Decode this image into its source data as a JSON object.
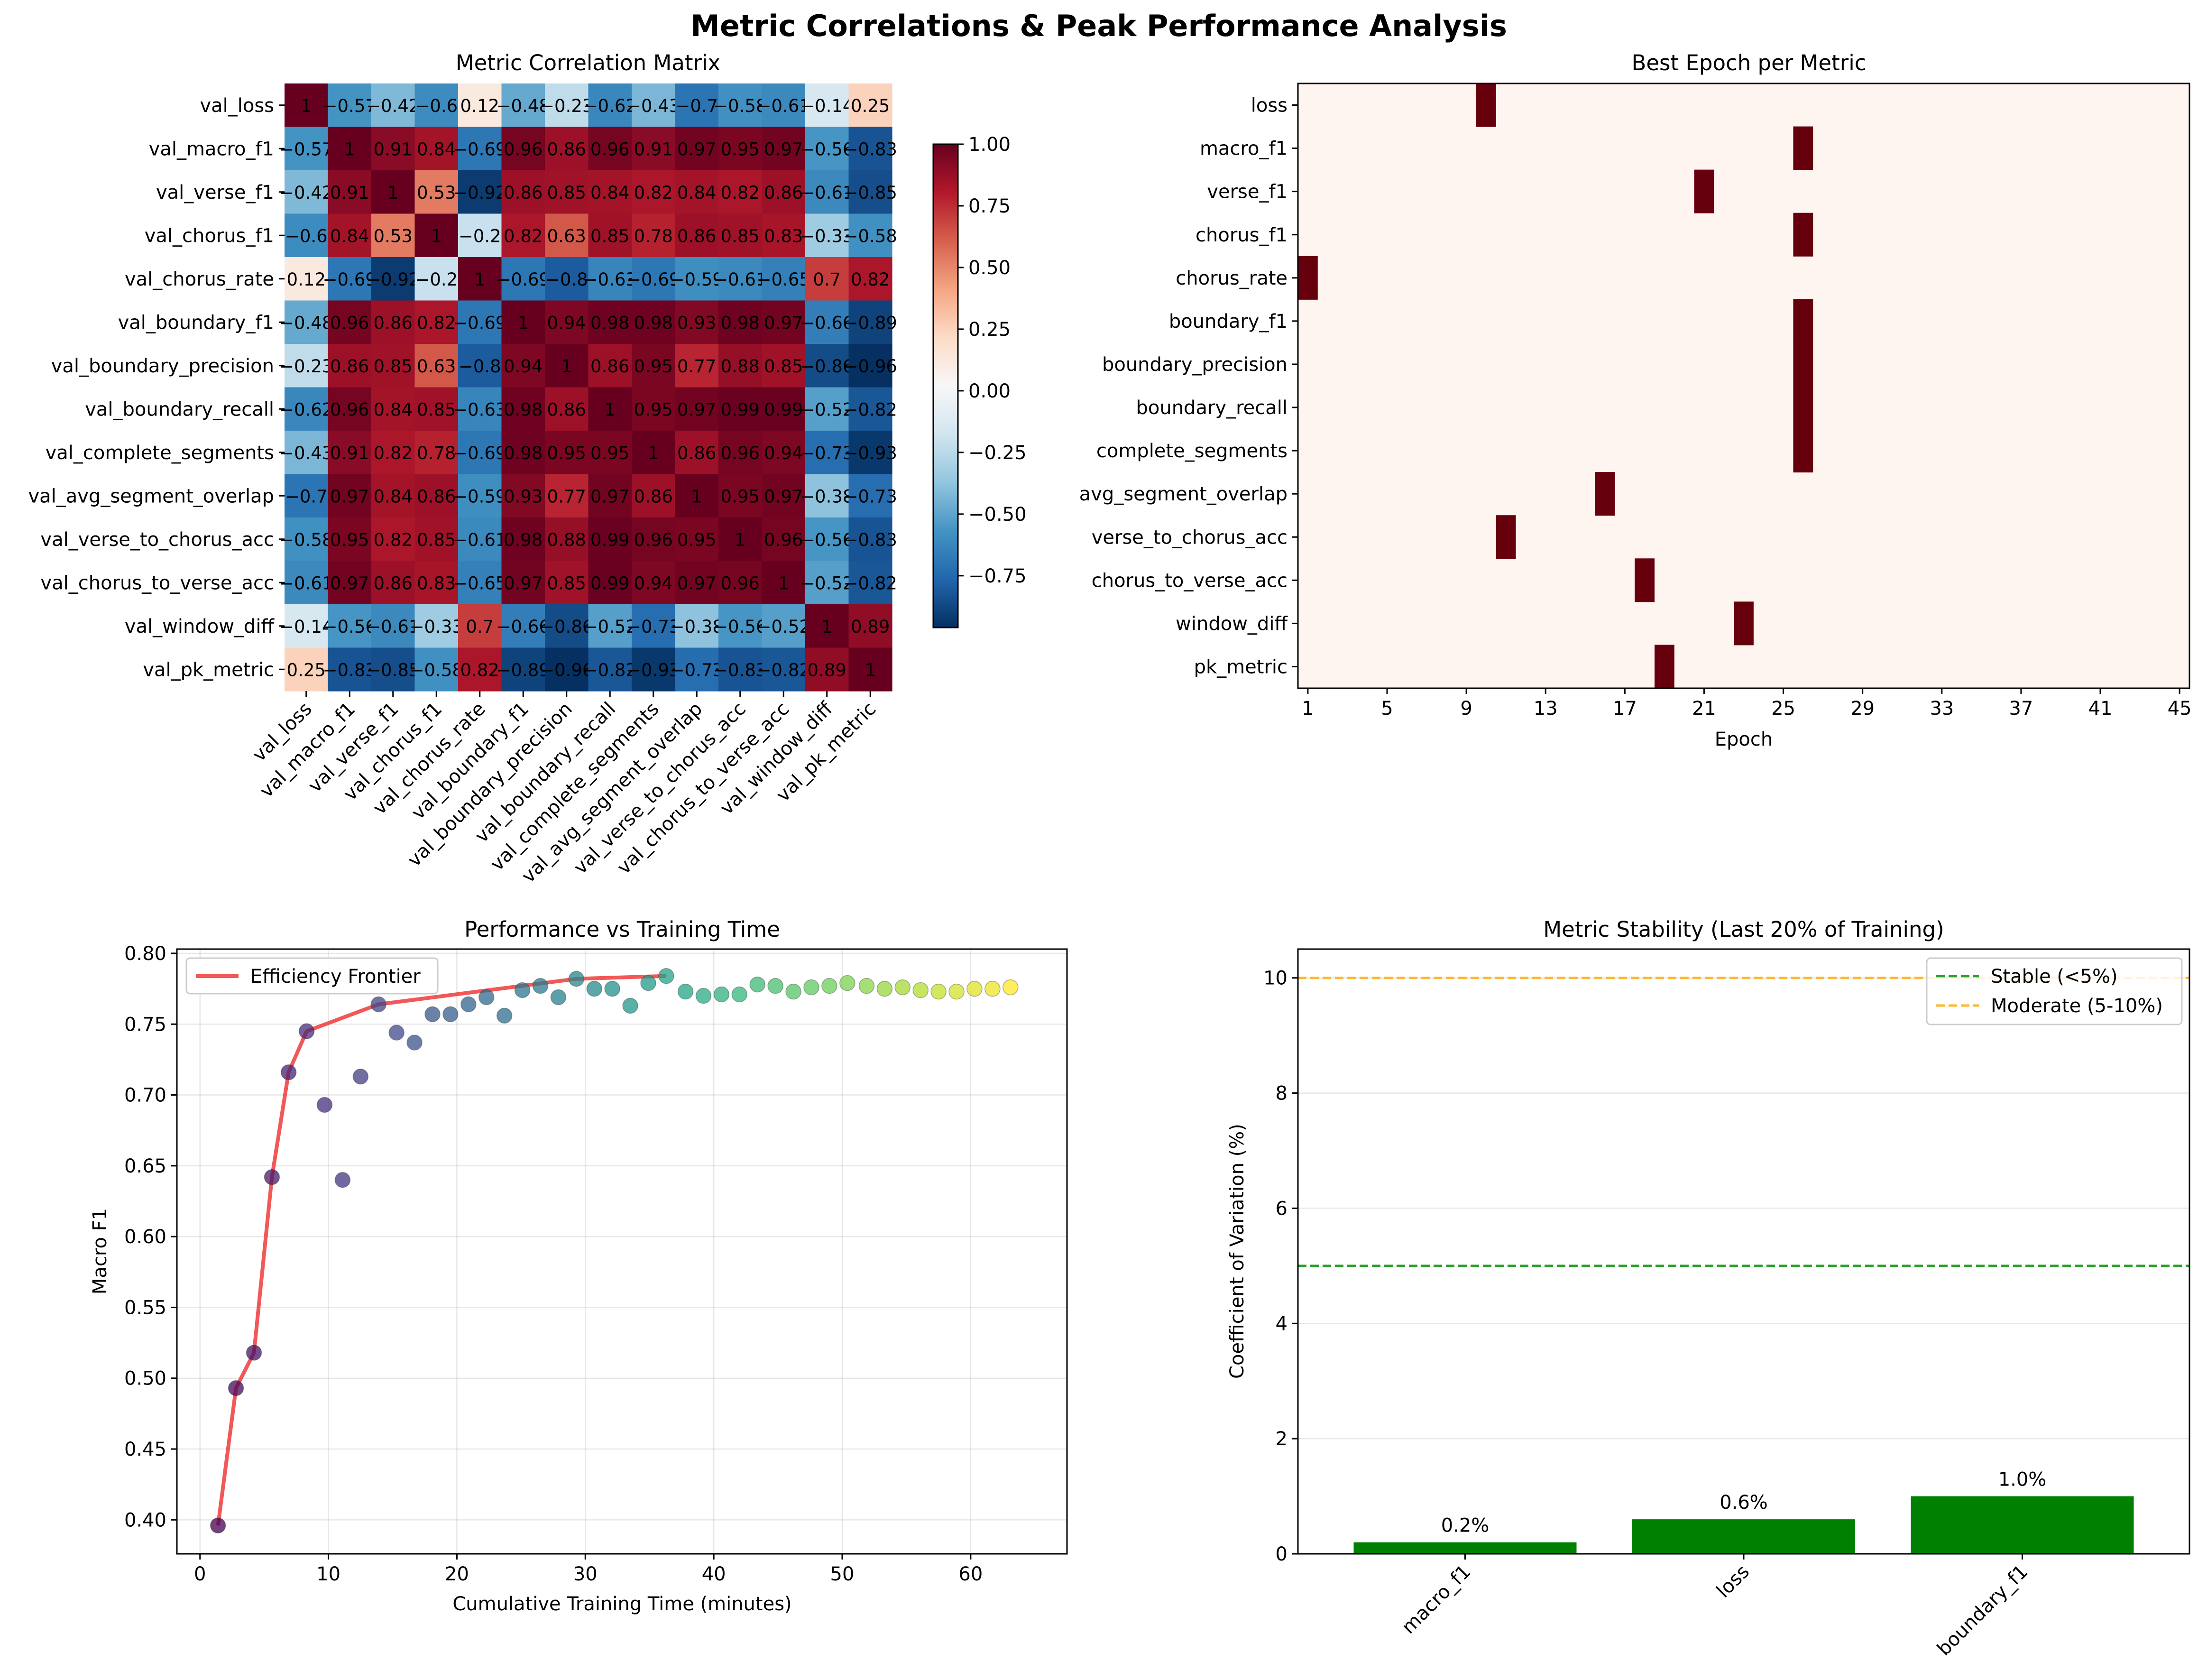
{
  "suptitle": "Metric Correlations & Peak Performance Analysis",
  "colors": {
    "heat_neg": "#053061",
    "heat_mid": "#f7f7f7",
    "heat_pos": "#67001f",
    "best_bg": "#fff5f0",
    "best_mark": "#67000d",
    "frontier": "#f03b3b",
    "bar": "#008000",
    "stable_line": "#2ca02c",
    "moderate_line": "#ffb732"
  },
  "chart_data": [
    {
      "type": "heatmap",
      "title": "Metric Correlation Matrix",
      "labels": [
        "val_loss",
        "val_macro_f1",
        "val_verse_f1",
        "val_chorus_f1",
        "val_chorus_rate",
        "val_boundary_f1",
        "val_boundary_precision",
        "val_boundary_recall",
        "val_complete_segments",
        "val_avg_segment_overlap",
        "val_verse_to_chorus_acc",
        "val_chorus_to_verse_acc",
        "val_window_diff",
        "val_pk_metric"
      ],
      "matrix": [
        [
          1,
          -0.57,
          -0.42,
          -0.6,
          0.12,
          -0.48,
          -0.23,
          -0.62,
          -0.43,
          -0.7,
          -0.58,
          -0.61,
          -0.14,
          0.25
        ],
        [
          -0.57,
          1,
          0.91,
          0.84,
          -0.69,
          0.96,
          0.86,
          0.96,
          0.91,
          0.97,
          0.95,
          0.97,
          -0.56,
          -0.83
        ],
        [
          -0.42,
          0.91,
          1,
          0.53,
          -0.92,
          0.86,
          0.85,
          0.84,
          0.82,
          0.84,
          0.82,
          0.86,
          -0.61,
          -0.85
        ],
        [
          -0.6,
          0.84,
          0.53,
          1,
          -0.2,
          0.82,
          0.63,
          0.85,
          0.78,
          0.86,
          0.85,
          0.83,
          -0.33,
          -0.58
        ],
        [
          0.12,
          -0.69,
          -0.92,
          -0.2,
          1,
          -0.69,
          -0.8,
          -0.63,
          -0.69,
          -0.59,
          -0.61,
          -0.65,
          0.7,
          0.82
        ],
        [
          -0.48,
          0.96,
          0.86,
          0.82,
          -0.69,
          1,
          0.94,
          0.98,
          0.98,
          0.93,
          0.98,
          0.97,
          -0.66,
          -0.89
        ],
        [
          -0.23,
          0.86,
          0.85,
          0.63,
          -0.8,
          0.94,
          1,
          0.86,
          0.95,
          0.77,
          0.88,
          0.85,
          -0.86,
          -0.96
        ],
        [
          -0.62,
          0.96,
          0.84,
          0.85,
          -0.63,
          0.98,
          0.86,
          1,
          0.95,
          0.97,
          0.99,
          0.99,
          -0.52,
          -0.82
        ],
        [
          -0.43,
          0.91,
          0.82,
          0.78,
          -0.69,
          0.98,
          0.95,
          0.95,
          1,
          0.86,
          0.96,
          0.94,
          -0.73,
          -0.93
        ],
        [
          -0.7,
          0.97,
          0.84,
          0.86,
          -0.59,
          0.93,
          0.77,
          0.97,
          0.86,
          1,
          0.95,
          0.97,
          -0.38,
          -0.73
        ],
        [
          -0.58,
          0.95,
          0.82,
          0.85,
          -0.61,
          0.98,
          0.88,
          0.99,
          0.96,
          0.95,
          1,
          0.96,
          -0.56,
          -0.83
        ],
        [
          -0.61,
          0.97,
          0.86,
          0.83,
          -0.65,
          0.97,
          0.85,
          0.99,
          0.94,
          0.97,
          0.96,
          1,
          -0.52,
          -0.82
        ],
        [
          -0.14,
          -0.56,
          -0.61,
          -0.33,
          0.7,
          -0.66,
          -0.86,
          -0.52,
          -0.73,
          -0.38,
          -0.56,
          -0.52,
          1,
          0.89
        ],
        [
          0.25,
          -0.83,
          -0.85,
          -0.58,
          0.82,
          -0.89,
          -0.96,
          -0.82,
          -0.93,
          -0.73,
          -0.83,
          -0.82,
          0.89,
          1
        ]
      ],
      "colorbar_ticks": [
        1.0,
        0.75,
        0.5,
        0.25,
        0.0,
        -0.25,
        -0.5,
        -0.75
      ],
      "colorbar_tick_labels": [
        "1.00",
        "0.75",
        "0.50",
        "0.25",
        "0.00",
        "−0.25",
        "−0.50",
        "−0.75"
      ],
      "vmin": -0.96,
      "vmax": 1.0
    },
    {
      "type": "heatmap",
      "title": "Best Epoch per Metric",
      "xlabel": "Epoch",
      "metrics": [
        "loss",
        "macro_f1",
        "verse_f1",
        "chorus_f1",
        "chorus_rate",
        "boundary_f1",
        "boundary_precision",
        "boundary_recall",
        "complete_segments",
        "avg_segment_overlap",
        "verse_to_chorus_acc",
        "chorus_to_verse_acc",
        "window_diff",
        "pk_metric"
      ],
      "best_epoch": [
        10,
        26,
        21,
        26,
        1,
        26,
        26,
        26,
        26,
        16,
        11,
        18,
        23,
        19
      ],
      "xticks": [
        "1",
        "5",
        "9",
        "13",
        "17",
        "21",
        "25",
        "29",
        "33",
        "37",
        "41",
        "45"
      ],
      "epoch_range": [
        1,
        45
      ]
    },
    {
      "type": "scatter",
      "title": "Performance vs Training Time",
      "xlabel": "Cumulative Training Time (minutes)",
      "ylabel": "Macro F1",
      "xlim": [
        -1.8,
        67.5
      ],
      "ylim": [
        0.376,
        0.803
      ],
      "xticks": [
        0,
        10,
        20,
        30,
        40,
        50,
        60
      ],
      "yticks": [
        0.4,
        0.45,
        0.5,
        0.55,
        0.6,
        0.65,
        0.7,
        0.75,
        0.8
      ],
      "ytick_labels": [
        "0.40",
        "0.45",
        "0.50",
        "0.55",
        "0.60",
        "0.65",
        "0.70",
        "0.75",
        "0.80"
      ],
      "legend": [
        "Efficiency Frontier"
      ],
      "points": [
        [
          1.4,
          0.396
        ],
        [
          2.8,
          0.493
        ],
        [
          4.2,
          0.518
        ],
        [
          5.6,
          0.642
        ],
        [
          6.9,
          0.716
        ],
        [
          8.3,
          0.745
        ],
        [
          9.7,
          0.693
        ],
        [
          11.1,
          0.64
        ],
        [
          12.5,
          0.713
        ],
        [
          13.9,
          0.764
        ],
        [
          15.3,
          0.744
        ],
        [
          16.7,
          0.737
        ],
        [
          18.1,
          0.757
        ],
        [
          19.5,
          0.757
        ],
        [
          20.9,
          0.764
        ],
        [
          22.3,
          0.769
        ],
        [
          23.7,
          0.756
        ],
        [
          25.1,
          0.774
        ],
        [
          26.5,
          0.777
        ],
        [
          27.9,
          0.769
        ],
        [
          29.3,
          0.782
        ],
        [
          30.7,
          0.775
        ],
        [
          32.1,
          0.775
        ],
        [
          33.5,
          0.763
        ],
        [
          34.9,
          0.779
        ],
        [
          36.3,
          0.784
        ],
        [
          37.8,
          0.773
        ],
        [
          39.2,
          0.77
        ],
        [
          40.6,
          0.771
        ],
        [
          42.0,
          0.771
        ],
        [
          43.4,
          0.778
        ],
        [
          44.8,
          0.777
        ],
        [
          46.2,
          0.773
        ],
        [
          47.6,
          0.776
        ],
        [
          49.0,
          0.777
        ],
        [
          50.4,
          0.779
        ],
        [
          51.9,
          0.777
        ],
        [
          53.3,
          0.775
        ],
        [
          54.7,
          0.776
        ],
        [
          56.1,
          0.774
        ],
        [
          57.5,
          0.773
        ],
        [
          58.9,
          0.773
        ],
        [
          60.3,
          0.775
        ],
        [
          61.7,
          0.775
        ],
        [
          63.1,
          0.776
        ]
      ],
      "frontier": [
        [
          1.4,
          0.396
        ],
        [
          2.8,
          0.493
        ],
        [
          4.2,
          0.518
        ],
        [
          5.6,
          0.642
        ],
        [
          6.9,
          0.716
        ],
        [
          8.3,
          0.745
        ],
        [
          13.9,
          0.764
        ],
        [
          29.3,
          0.782
        ],
        [
          36.3,
          0.784
        ]
      ]
    },
    {
      "type": "bar",
      "title": "Metric Stability (Last 20% of Training)",
      "ylabel": "Coefficient of Variation (%)",
      "categories": [
        "macro_f1",
        "loss",
        "boundary_f1"
      ],
      "values": [
        0.2,
        0.6,
        1.0
      ],
      "bar_labels": [
        "0.2%",
        "0.6%",
        "1.0%"
      ],
      "ylim": [
        0,
        10.5
      ],
      "yticks": [
        0,
        2,
        4,
        6,
        8,
        10
      ],
      "thresholds": [
        5,
        10
      ],
      "legend": [
        "Stable (<5%)",
        "Moderate (5-10%)"
      ]
    }
  ]
}
